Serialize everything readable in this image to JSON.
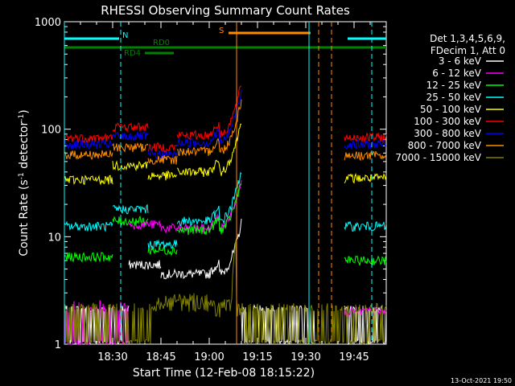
{
  "chart_data": {
    "type": "line",
    "title": "RHESSI Observing Summary Count Rates",
    "xlabel": "Start Time (12-Feb-08 18:15:22)",
    "ylabel_parts": [
      "Count Rate (s",
      "-1",
      " detector",
      "-1",
      ")"
    ],
    "yscale": "log",
    "xlim_min": [
      0,
      100
    ],
    "ylim": [
      1,
      1000
    ],
    "x_ticks": [
      {
        "t": 15,
        "label": "18:30"
      },
      {
        "t": 30,
        "label": "18:45"
      },
      {
        "t": 45,
        "label": "19:00"
      },
      {
        "t": 60,
        "label": "19:15"
      },
      {
        "t": 75,
        "label": "19:30"
      },
      {
        "t": 90,
        "label": "19:45"
      }
    ],
    "y_ticks": [
      {
        "v": 1,
        "label": "1"
      },
      {
        "v": 10,
        "label": "10"
      },
      {
        "v": 100,
        "label": "100"
      },
      {
        "v": 1000,
        "label": "1000"
      }
    ],
    "legend": {
      "header": [
        "Det 1,3,4,5,6,9,",
        "FDecim 1, Att 0"
      ],
      "placement": "right"
    },
    "series": [
      {
        "name": "3 - 6 keV",
        "color": "#ffffff",
        "segments": [
          [
            0,
            20,
            null
          ],
          [
            20,
            30,
            5.5
          ],
          [
            30,
            45,
            4.5
          ],
          [
            45,
            55,
            4.5
          ],
          [
            55,
            78,
            null
          ],
          [
            87,
            100,
            null
          ]
        ]
      },
      {
        "name": "6 - 12 keV",
        "color": "#ff00ff",
        "segments": [
          [
            0,
            20,
            2.0
          ],
          [
            20,
            30,
            13
          ],
          [
            30,
            45,
            12
          ],
          [
            45,
            55,
            12
          ],
          [
            87,
            100,
            2.0
          ]
        ]
      },
      {
        "name": "12 - 25 keV",
        "color": "#00ff00",
        "segments": [
          [
            0,
            15,
            6.5
          ],
          [
            15,
            26,
            14
          ],
          [
            26,
            35,
            7.5
          ],
          [
            35,
            55,
            11.5
          ],
          [
            87,
            100,
            6.0
          ]
        ]
      },
      {
        "name": "25 - 50 keV",
        "color": "#00ffff",
        "segments": [
          [
            0,
            15,
            12.5
          ],
          [
            15,
            26,
            18
          ],
          [
            26,
            35,
            8.5
          ],
          [
            35,
            55,
            14
          ],
          [
            87,
            100,
            12.5
          ]
        ]
      },
      {
        "name": "50 - 100 keV",
        "color": "#ffff00",
        "segments": [
          [
            0,
            15,
            34
          ],
          [
            15,
            26,
            46
          ],
          [
            26,
            35,
            37
          ],
          [
            35,
            55,
            40
          ],
          [
            87,
            100,
            35
          ]
        ]
      },
      {
        "name": "100 - 300 keV",
        "color": "#ff0000",
        "segments": [
          [
            0,
            15,
            83
          ],
          [
            15,
            26,
            105
          ],
          [
            26,
            35,
            68
          ],
          [
            35,
            55,
            88
          ],
          [
            87,
            100,
            84
          ]
        ]
      },
      {
        "name": "300 - 800 keV",
        "color": "#0000ff",
        "segments": [
          [
            0,
            15,
            72
          ],
          [
            15,
            26,
            86
          ],
          [
            26,
            35,
            58
          ],
          [
            35,
            55,
            75
          ],
          [
            87,
            100,
            72
          ]
        ]
      },
      {
        "name": "800 - 7000 keV",
        "color": "#ff8c00",
        "segments": [
          [
            0,
            15,
            58
          ],
          [
            15,
            26,
            68
          ],
          [
            26,
            35,
            52
          ],
          [
            35,
            55,
            62
          ],
          [
            87,
            100,
            57
          ]
        ]
      },
      {
        "name": "7000 - 15000 keV",
        "color": "#808000",
        "segments": [
          [
            0,
            100,
            1.7
          ]
        ]
      }
    ],
    "flags": [
      {
        "label": "N",
        "color": "#00ffff",
        "ranges": [
          [
            0,
            17
          ],
          [
            88,
            100
          ]
        ]
      },
      {
        "label": "S",
        "color": "#ff8c00",
        "ranges": [
          [
            51,
            76.5
          ]
        ]
      },
      {
        "label": "RD0",
        "color": "#008000",
        "ranges": [
          [
            0,
            100
          ]
        ]
      },
      {
        "label": "RD4",
        "color": "#008000",
        "ranges": [
          [
            25,
            34
          ]
        ]
      }
    ],
    "vertical_lines": [
      {
        "t": 0,
        "color": "#00ffff",
        "dashed": false
      },
      {
        "t": 17.5,
        "color": "#00ffff",
        "dashed": true
      },
      {
        "t": 53.5,
        "color": "#ff8c00",
        "dashed": false
      },
      {
        "t": 76,
        "color": "#00ffff",
        "dashed": false
      },
      {
        "t": 79,
        "color": "#ff8c00",
        "dashed": true
      },
      {
        "t": 83,
        "color": "#ff8c00",
        "dashed": true
      },
      {
        "t": 95.5,
        "color": "#00ffff",
        "dashed": true
      }
    ]
  },
  "footer": {
    "timestamp": "13-Oct-2021 19:50"
  }
}
